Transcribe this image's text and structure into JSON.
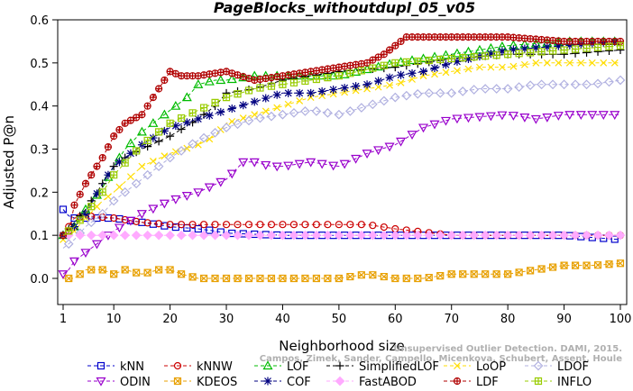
{
  "chart_data": {
    "type": "line",
    "title": "PageBlocks_withoutdupl_05_v05",
    "xlabel": "Neighborhood size",
    "ylabel": "Adjusted P@n",
    "xlim": [
      0,
      101
    ],
    "ylim": [
      -0.05,
      0.6
    ],
    "xticks": [
      "1",
      "10",
      "20",
      "30",
      "40",
      "50",
      "60",
      "70",
      "80",
      "90",
      "100"
    ],
    "yticks": [
      "0.0",
      "0.1",
      "0.2",
      "0.3",
      "0.4",
      "0.5",
      "0.6"
    ],
    "grid": false,
    "legend_position": "bottom",
    "series": [
      {
        "name": "kNN",
        "color": "#0000cc",
        "marker": "square",
        "dash": "4,3",
        "points": [
          [
            1,
            0.16
          ],
          [
            2,
            0.145
          ],
          [
            3,
            0.14
          ],
          [
            5,
            0.14
          ],
          [
            10,
            0.14
          ],
          [
            15,
            0.13
          ],
          [
            20,
            0.12
          ],
          [
            25,
            0.115
          ],
          [
            28,
            0.11
          ],
          [
            30,
            0.105
          ],
          [
            40,
            0.1
          ],
          [
            60,
            0.1
          ],
          [
            80,
            0.1
          ],
          [
            90,
            0.1
          ],
          [
            100,
            0.09
          ]
        ]
      },
      {
        "name": "kNNW",
        "color": "#cc0000",
        "marker": "circle",
        "dash": "4,3",
        "points": [
          [
            1,
            0.1
          ],
          [
            3,
            0.14
          ],
          [
            5,
            0.145
          ],
          [
            10,
            0.14
          ],
          [
            15,
            0.13
          ],
          [
            20,
            0.125
          ],
          [
            30,
            0.125
          ],
          [
            40,
            0.125
          ],
          [
            50,
            0.125
          ],
          [
            55,
            0.125
          ],
          [
            60,
            0.115
          ],
          [
            70,
            0.1
          ],
          [
            80,
            0.1
          ],
          [
            90,
            0.1
          ],
          [
            100,
            0.1
          ]
        ]
      },
      {
        "name": "LOF",
        "color": "#00bb00",
        "marker": "triangle",
        "dash": "4,3",
        "points": [
          [
            1,
            0.1
          ],
          [
            3,
            0.12
          ],
          [
            5,
            0.16
          ],
          [
            8,
            0.21
          ],
          [
            10,
            0.26
          ],
          [
            12,
            0.3
          ],
          [
            15,
            0.34
          ],
          [
            18,
            0.37
          ],
          [
            20,
            0.39
          ],
          [
            23,
            0.42
          ],
          [
            25,
            0.45
          ],
          [
            28,
            0.46
          ],
          [
            30,
            0.46
          ],
          [
            35,
            0.47
          ],
          [
            40,
            0.47
          ],
          [
            50,
            0.47
          ],
          [
            60,
            0.5
          ],
          [
            70,
            0.52
          ],
          [
            80,
            0.54
          ],
          [
            90,
            0.55
          ],
          [
            100,
            0.55
          ]
        ]
      },
      {
        "name": "SimplifiedLOF",
        "color": "#000000",
        "marker": "plus",
        "dash": "4,3",
        "points": [
          [
            1,
            0.1
          ],
          [
            3,
            0.13
          ],
          [
            5,
            0.16
          ],
          [
            8,
            0.22
          ],
          [
            10,
            0.26
          ],
          [
            12,
            0.28
          ],
          [
            15,
            0.3
          ],
          [
            20,
            0.33
          ],
          [
            25,
            0.37
          ],
          [
            28,
            0.4
          ],
          [
            30,
            0.43
          ],
          [
            35,
            0.44
          ],
          [
            40,
            0.46
          ],
          [
            45,
            0.47
          ],
          [
            50,
            0.48
          ],
          [
            60,
            0.49
          ],
          [
            70,
            0.51
          ],
          [
            80,
            0.52
          ],
          [
            90,
            0.52
          ],
          [
            100,
            0.53
          ]
        ]
      },
      {
        "name": "LoOP",
        "color": "#ffdd00",
        "marker": "x",
        "dash": "4,3",
        "points": [
          [
            1,
            0.09
          ],
          [
            3,
            0.11
          ],
          [
            5,
            0.14
          ],
          [
            8,
            0.18
          ],
          [
            10,
            0.2
          ],
          [
            15,
            0.26
          ],
          [
            20,
            0.29
          ],
          [
            25,
            0.31
          ],
          [
            28,
            0.33
          ],
          [
            30,
            0.36
          ],
          [
            35,
            0.38
          ],
          [
            40,
            0.4
          ],
          [
            45,
            0.42
          ],
          [
            50,
            0.43
          ],
          [
            55,
            0.44
          ],
          [
            60,
            0.45
          ],
          [
            65,
            0.47
          ],
          [
            70,
            0.48
          ],
          [
            75,
            0.49
          ],
          [
            80,
            0.49
          ],
          [
            85,
            0.5
          ],
          [
            90,
            0.5
          ],
          [
            100,
            0.5
          ]
        ]
      },
      {
        "name": "LDOF",
        "color": "#b0b0e0",
        "marker": "diamond",
        "dash": "4,3",
        "points": [
          [
            1,
            0.07
          ],
          [
            3,
            0.09
          ],
          [
            5,
            0.12
          ],
          [
            8,
            0.15
          ],
          [
            10,
            0.18
          ],
          [
            15,
            0.23
          ],
          [
            20,
            0.28
          ],
          [
            25,
            0.32
          ],
          [
            30,
            0.35
          ],
          [
            35,
            0.37
          ],
          [
            40,
            0.38
          ],
          [
            45,
            0.39
          ],
          [
            50,
            0.38
          ],
          [
            55,
            0.4
          ],
          [
            60,
            0.42
          ],
          [
            65,
            0.43
          ],
          [
            70,
            0.43
          ],
          [
            75,
            0.44
          ],
          [
            80,
            0.44
          ],
          [
            85,
            0.45
          ],
          [
            90,
            0.45
          ],
          [
            95,
            0.45
          ],
          [
            100,
            0.46
          ]
        ]
      },
      {
        "name": "ODIN",
        "color": "#9900cc",
        "marker": "invtriangle",
        "dash": "4,3",
        "points": [
          [
            1,
            0.01
          ],
          [
            2,
            0.02
          ],
          [
            3,
            0.04
          ],
          [
            5,
            0.06
          ],
          [
            8,
            0.09
          ],
          [
            10,
            0.11
          ],
          [
            15,
            0.15
          ],
          [
            20,
            0.18
          ],
          [
            25,
            0.2
          ],
          [
            30,
            0.23
          ],
          [
            33,
            0.27
          ],
          [
            35,
            0.27
          ],
          [
            38,
            0.26
          ],
          [
            40,
            0.26
          ],
          [
            45,
            0.27
          ],
          [
            50,
            0.26
          ],
          [
            55,
            0.29
          ],
          [
            60,
            0.31
          ],
          [
            65,
            0.35
          ],
          [
            70,
            0.37
          ],
          [
            75,
            0.375
          ],
          [
            80,
            0.38
          ],
          [
            85,
            0.37
          ],
          [
            90,
            0.38
          ],
          [
            95,
            0.38
          ],
          [
            100,
            0.38
          ]
        ]
      },
      {
        "name": "KDEOS",
        "color": "#e8a000",
        "marker": "squarex",
        "dash": "4,3",
        "points": [
          [
            1,
            0.0
          ],
          [
            3,
            0.0
          ],
          [
            5,
            0.02
          ],
          [
            8,
            0.02
          ],
          [
            10,
            0.01
          ],
          [
            12,
            0.02
          ],
          [
            15,
            0.01
          ],
          [
            18,
            0.02
          ],
          [
            20,
            0.02
          ],
          [
            22,
            0.01
          ],
          [
            25,
            0.0
          ],
          [
            28,
            0.0
          ],
          [
            30,
            0.0
          ],
          [
            35,
            0.0
          ],
          [
            40,
            0.0
          ],
          [
            45,
            0.0
          ],
          [
            50,
            0.0
          ],
          [
            55,
            0.01
          ],
          [
            60,
            0.0
          ],
          [
            65,
            0.0
          ],
          [
            70,
            0.01
          ],
          [
            75,
            0.01
          ],
          [
            80,
            0.01
          ],
          [
            85,
            0.02
          ],
          [
            90,
            0.03
          ],
          [
            95,
            0.03
          ],
          [
            100,
            0.035
          ]
        ]
      },
      {
        "name": "COF",
        "color": "#000080",
        "marker": "star",
        "dash": "4,3",
        "points": [
          [
            1,
            0.1
          ],
          [
            3,
            0.12
          ],
          [
            5,
            0.15
          ],
          [
            8,
            0.22
          ],
          [
            10,
            0.26
          ],
          [
            15,
            0.31
          ],
          [
            20,
            0.35
          ],
          [
            25,
            0.37
          ],
          [
            30,
            0.39
          ],
          [
            35,
            0.41
          ],
          [
            40,
            0.43
          ],
          [
            45,
            0.43
          ],
          [
            50,
            0.44
          ],
          [
            55,
            0.45
          ],
          [
            60,
            0.47
          ],
          [
            65,
            0.48
          ],
          [
            70,
            0.5
          ],
          [
            80,
            0.53
          ],
          [
            90,
            0.54
          ],
          [
            100,
            0.55
          ]
        ]
      },
      {
        "name": "FastABOD",
        "color": "#ffaaff",
        "marker": "diamondfill",
        "dash": "4,3",
        "points": [
          [
            1,
            0.1
          ],
          [
            5,
            0.1
          ],
          [
            10,
            0.1
          ],
          [
            20,
            0.1
          ],
          [
            30,
            0.1
          ],
          [
            40,
            0.1
          ],
          [
            50,
            0.1
          ],
          [
            60,
            0.1
          ],
          [
            70,
            0.1
          ],
          [
            80,
            0.1
          ],
          [
            90,
            0.1
          ],
          [
            100,
            0.1
          ]
        ]
      },
      {
        "name": "LDF",
        "color": "#b00000",
        "marker": "circleplus",
        "dash": "4,3",
        "points": [
          [
            1,
            0.1
          ],
          [
            2,
            0.11
          ],
          [
            3,
            0.17
          ],
          [
            5,
            0.22
          ],
          [
            8,
            0.28
          ],
          [
            10,
            0.33
          ],
          [
            12,
            0.36
          ],
          [
            15,
            0.38
          ],
          [
            18,
            0.44
          ],
          [
            20,
            0.48
          ],
          [
            22,
            0.47
          ],
          [
            25,
            0.47
          ],
          [
            30,
            0.48
          ],
          [
            35,
            0.46
          ],
          [
            40,
            0.47
          ],
          [
            45,
            0.48
          ],
          [
            50,
            0.49
          ],
          [
            55,
            0.5
          ],
          [
            58,
            0.52
          ],
          [
            60,
            0.54
          ],
          [
            62,
            0.56
          ],
          [
            65,
            0.56
          ],
          [
            70,
            0.56
          ],
          [
            80,
            0.56
          ],
          [
            90,
            0.55
          ],
          [
            100,
            0.55
          ]
        ]
      },
      {
        "name": "INFLO",
        "color": "#99cc00",
        "marker": "squareplus",
        "dash": "4,3",
        "points": [
          [
            1,
            0.1
          ],
          [
            3,
            0.12
          ],
          [
            5,
            0.15
          ],
          [
            8,
            0.2
          ],
          [
            10,
            0.24
          ],
          [
            15,
            0.31
          ],
          [
            20,
            0.36
          ],
          [
            25,
            0.39
          ],
          [
            30,
            0.42
          ],
          [
            35,
            0.44
          ],
          [
            40,
            0.45
          ],
          [
            45,
            0.46
          ],
          [
            50,
            0.47
          ],
          [
            60,
            0.5
          ],
          [
            70,
            0.51
          ],
          [
            80,
            0.52
          ],
          [
            90,
            0.53
          ],
          [
            100,
            0.54
          ]
        ]
      }
    ],
    "legend_rows": [
      [
        "kNN",
        "kNNW",
        "LOF",
        "SimplifiedLOF",
        "LoOP",
        "LDOF"
      ],
      [
        "ODIN",
        "KDEOS",
        "COF",
        "FastABOD",
        "LDF",
        "INFLO"
      ]
    ],
    "watermark_lines": [
      "Unsupervised Outlier Detection. DAMI, 2015.",
      "Campos, Zimek, Sander, Campello, Micenkova, Schubert, Assent, Houle"
    ]
  }
}
